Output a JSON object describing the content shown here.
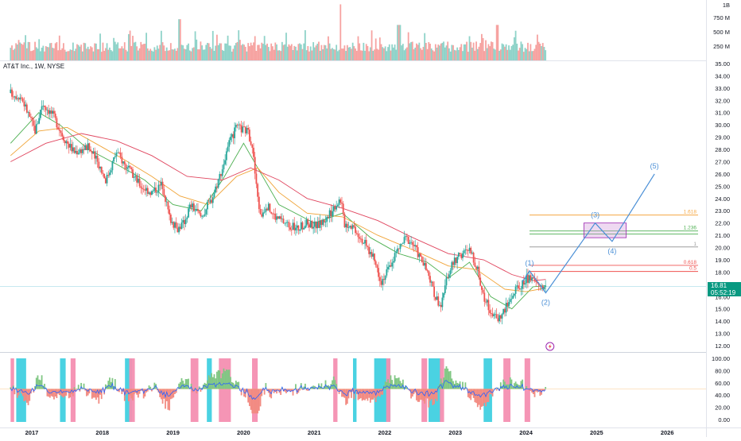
{
  "symbol": {
    "title": "AT&T Inc., 1W, NYSE"
  },
  "price_badge": {
    "price": "16.81",
    "countdown": "05:52:19"
  },
  "colors": {
    "up": "#26a69a",
    "down": "#ef5350",
    "upLight": "#8fd3c9",
    "downLight": "#f6a3a1",
    "ma_green": "#4caf50",
    "ma_orange": "#f0a336",
    "ma_red": "#e0455e",
    "wave": "#4a8fd6",
    "fib_1618": "#f5a742",
    "fib_1": "#9e9e9e",
    "fib_1236": "#4caf50",
    "fib_0618": "#ef5350",
    "fib_05": "#ef5350",
    "osc_line": "#2962ff",
    "osc_green": "#81c784",
    "osc_red": "#f28b82",
    "osc_cyan": "#40d0e0",
    "osc_pink": "#f48fb1"
  },
  "chart_data": [
    {
      "type": "candlestick",
      "interval": "1W",
      "ylim": [
        12,
        35
      ],
      "y_ticks": [
        "35.00",
        "34.00",
        "33.00",
        "32.00",
        "31.00",
        "30.00",
        "29.00",
        "28.00",
        "27.00",
        "26.00",
        "25.00",
        "24.00",
        "23.00",
        "22.00",
        "21.00",
        "20.00",
        "19.00",
        "18.00",
        "17.00",
        "16.00",
        "15.00",
        "14.00",
        "13.00",
        "12.00"
      ],
      "x_ticks": [
        "2017",
        "2018",
        "2019",
        "2020",
        "2021",
        "2022",
        "2023",
        "2024",
        "2025",
        "2026"
      ],
      "price_anchors": [
        [
          2016.7,
          32.6
        ],
        [
          2016.85,
          32.3
        ],
        [
          2017.05,
          29.5
        ],
        [
          2017.15,
          31.8
        ],
        [
          2017.3,
          30.8
        ],
        [
          2017.45,
          29.0
        ],
        [
          2017.6,
          27.8
        ],
        [
          2017.8,
          28.2
        ],
        [
          2017.95,
          26.8
        ],
        [
          2018.05,
          25.5
        ],
        [
          2018.2,
          27.8
        ],
        [
          2018.35,
          26.5
        ],
        [
          2018.55,
          25.0
        ],
        [
          2018.7,
          24.5
        ],
        [
          2018.85,
          25.2
        ],
        [
          2018.95,
          22.5
        ],
        [
          2019.05,
          21.5
        ],
        [
          2019.15,
          22.0
        ],
        [
          2019.25,
          23.5
        ],
        [
          2019.4,
          22.5
        ],
        [
          2019.55,
          24.0
        ],
        [
          2019.7,
          26.5
        ],
        [
          2019.8,
          28.5
        ],
        [
          2019.9,
          29.8
        ],
        [
          2020.05,
          29.5
        ],
        [
          2020.12,
          28.5
        ],
        [
          2020.18,
          25.0
        ],
        [
          2020.24,
          22.5
        ],
        [
          2020.32,
          23.5
        ],
        [
          2020.45,
          22.5
        ],
        [
          2020.6,
          22.0
        ],
        [
          2020.75,
          21.5
        ],
        [
          2020.9,
          22.0
        ],
        [
          2021.05,
          21.8
        ],
        [
          2021.2,
          22.5
        ],
        [
          2021.3,
          23.5
        ],
        [
          2021.38,
          24.0
        ],
        [
          2021.42,
          22.0
        ],
        [
          2021.55,
          21.8
        ],
        [
          2021.7,
          20.5
        ],
        [
          2021.85,
          19.0
        ],
        [
          2021.95,
          17.3
        ],
        [
          2022.05,
          18.2
        ],
        [
          2022.15,
          19.5
        ],
        [
          2022.3,
          20.8
        ],
        [
          2022.4,
          20.3
        ],
        [
          2022.5,
          19.2
        ],
        [
          2022.6,
          18.0
        ],
        [
          2022.7,
          16.2
        ],
        [
          2022.8,
          15.2
        ],
        [
          2022.9,
          18.0
        ],
        [
          2023.0,
          19.0
        ],
        [
          2023.1,
          19.5
        ],
        [
          2023.2,
          19.8
        ],
        [
          2023.3,
          18.5
        ],
        [
          2023.4,
          16.0
        ],
        [
          2023.5,
          14.8
        ],
        [
          2023.58,
          14.2
        ],
        [
          2023.65,
          14.5
        ],
        [
          2023.75,
          15.5
        ],
        [
          2023.85,
          16.5
        ],
        [
          2023.95,
          17.0
        ],
        [
          2024.0,
          17.5
        ],
        [
          2024.1,
          17.3
        ],
        [
          2024.2,
          16.9
        ],
        [
          2024.28,
          16.81
        ]
      ],
      "moving_averages": [
        {
          "color_key": "ma_green",
          "points": [
            [
              2016.7,
              28.5
            ],
            [
              2017.1,
              31.0
            ],
            [
              2017.4,
              30.0
            ],
            [
              2017.8,
              28.0
            ],
            [
              2018.2,
              26.8
            ],
            [
              2018.6,
              25.5
            ],
            [
              2019.0,
              23.5
            ],
            [
              2019.4,
              23.0
            ],
            [
              2019.7,
              25.5
            ],
            [
              2020.0,
              28.5
            ],
            [
              2020.2,
              26.5
            ],
            [
              2020.5,
              23.5
            ],
            [
              2021.0,
              22.0
            ],
            [
              2021.4,
              22.8
            ],
            [
              2021.8,
              20.8
            ],
            [
              2022.2,
              19.5
            ],
            [
              2022.6,
              18.8
            ],
            [
              2022.9,
              17.5
            ],
            [
              2023.2,
              18.8
            ],
            [
              2023.5,
              16.0
            ],
            [
              2023.8,
              15.0
            ],
            [
              2024.1,
              16.8
            ],
            [
              2024.28,
              16.9
            ]
          ]
        },
        {
          "color_key": "ma_orange",
          "points": [
            [
              2016.7,
              27.5
            ],
            [
              2017.1,
              29.5
            ],
            [
              2017.5,
              29.8
            ],
            [
              2017.9,
              28.5
            ],
            [
              2018.3,
              27.2
            ],
            [
              2018.7,
              25.8
            ],
            [
              2019.1,
              24.2
            ],
            [
              2019.5,
              23.5
            ],
            [
              2019.9,
              25.8
            ],
            [
              2020.2,
              26.5
            ],
            [
              2020.5,
              24.5
            ],
            [
              2020.9,
              22.8
            ],
            [
              2021.4,
              22.5
            ],
            [
              2021.9,
              21.0
            ],
            [
              2022.4,
              19.8
            ],
            [
              2022.9,
              18.5
            ],
            [
              2023.3,
              18.2
            ],
            [
              2023.7,
              16.6
            ],
            [
              2024.0,
              16.4
            ],
            [
              2024.28,
              16.7
            ]
          ]
        },
        {
          "color_key": "ma_red",
          "points": [
            [
              2016.7,
              27.0
            ],
            [
              2017.2,
              28.5
            ],
            [
              2017.7,
              29.3
            ],
            [
              2018.2,
              28.7
            ],
            [
              2018.7,
              27.5
            ],
            [
              2019.2,
              25.8
            ],
            [
              2019.7,
              25.5
            ],
            [
              2020.1,
              26.5
            ],
            [
              2020.5,
              25.5
            ],
            [
              2020.9,
              24.0
            ],
            [
              2021.4,
              23.2
            ],
            [
              2021.9,
              22.2
            ],
            [
              2022.4,
              20.8
            ],
            [
              2022.9,
              19.5
            ],
            [
              2023.4,
              19.0
            ],
            [
              2023.8,
              17.8
            ],
            [
              2024.1,
              17.3
            ],
            [
              2024.28,
              17.4
            ]
          ]
        }
      ],
      "current_price": 16.81,
      "horizontal_line": 16.81
    },
    {
      "type": "bar",
      "name": "volume",
      "y_ticks": [
        "1B",
        "750 M",
        "500 M",
        "250 M"
      ],
      "ylim": [
        0,
        1000
      ]
    },
    {
      "type": "histogram+line",
      "name": "oscillator",
      "ylim": [
        0,
        100
      ],
      "y_ticks": [
        "100.00",
        "80.00",
        "60.00",
        "40.00",
        "20.00",
        "0.00"
      ],
      "zones": {
        "cyan": [
          [
            2016.78,
            2016.92
          ],
          [
            2017.4,
            2017.48
          ],
          [
            2018.32,
            2018.42
          ],
          [
            2019.48,
            2019.55
          ],
          [
            2021.55,
            2021.6
          ],
          [
            2021.85,
            2022.08
          ],
          [
            2022.62,
            2022.8
          ],
          [
            2023.4,
            2023.52
          ]
        ],
        "pink": [
          [
            2016.7,
            2016.75
          ],
          [
            2017.55,
            2017.62
          ],
          [
            2018.38,
            2018.46
          ],
          [
            2019.25,
            2019.36
          ],
          [
            2019.65,
            2019.82
          ],
          [
            2020.12,
            2020.2
          ],
          [
            2021.27,
            2021.33
          ],
          [
            2022.02,
            2022.08
          ],
          [
            2022.52,
            2022.6
          ],
          [
            2022.78,
            2022.84
          ],
          [
            2023.68,
            2023.78
          ],
          [
            2023.98,
            2024.06
          ]
        ]
      }
    }
  ],
  "fib_levels": [
    {
      "label": "1.618",
      "value": 22.65,
      "color_key": "fib_1618"
    },
    {
      "label": "1.236",
      "value": 21.35,
      "color_key": "fib_1236"
    },
    {
      "label": "1",
      "value": 20.05,
      "color_key": "fib_1"
    },
    {
      "label": "0.618",
      "value": 18.55,
      "color_key": "fib_0618"
    },
    {
      "label": "0.5",
      "value": 18.05,
      "color_key": "fib_05"
    }
  ],
  "waves": [
    {
      "label": "(1)",
      "x": 2024.05,
      "y": 17.9
    },
    {
      "label": "(2)",
      "x": 2024.28,
      "y": 16.0
    },
    {
      "label": "(3)",
      "x": 2024.98,
      "y": 22.0
    },
    {
      "label": "(4)",
      "x": 2025.22,
      "y": 20.4
    },
    {
      "label": "(5)",
      "x": 2025.82,
      "y": 26.0
    }
  ],
  "target_box": {
    "x0": 2024.82,
    "x1": 2025.42,
    "y0": 20.8,
    "y1": 22.0
  }
}
